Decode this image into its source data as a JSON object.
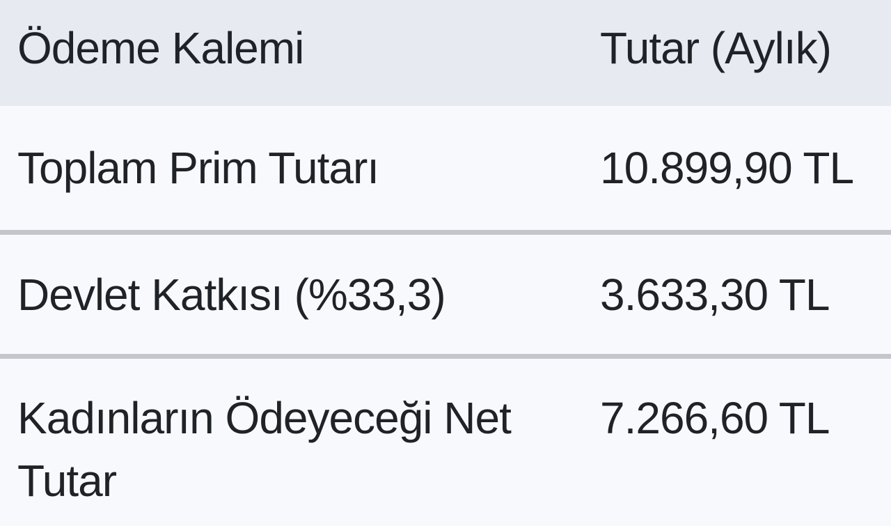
{
  "table": {
    "columns": [
      {
        "label": "Ödeme Kalemi"
      },
      {
        "label": "Tutar (Aylık)"
      }
    ],
    "rows": [
      {
        "item": "Toplam Prim Tutarı",
        "amount": "10.899,90 TL"
      },
      {
        "item": "Devlet Katkısı (%33,3)",
        "amount": "3.633,30 TL"
      },
      {
        "item": "Kadınların Ödeyeceği Net Tutar",
        "amount": "7.266,60 TL"
      }
    ],
    "colors": {
      "header_bg": "#E8EAF2",
      "row_bg": "#F8F9FC",
      "divider": "#C5C6CB",
      "text": "#1F2227"
    }
  }
}
